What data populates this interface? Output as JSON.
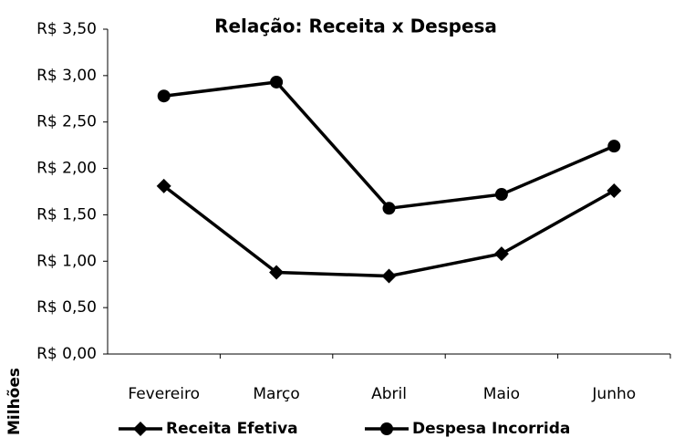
{
  "chart_data": {
    "type": "line",
    "title": "Relação: Receita x Despesa",
    "y_label": "Milhões",
    "categories": [
      "Fevereiro",
      "Março",
      "Abril",
      "Maio",
      "Junho"
    ],
    "series": [
      {
        "name": "Receita Efetiva",
        "color": "#000000",
        "marker": "diamond",
        "values": [
          1.81,
          0.88,
          0.84,
          1.08,
          1.76
        ]
      },
      {
        "name": "Despesa Incorrida",
        "color": "#000000",
        "marker": "circle",
        "values": [
          2.78,
          2.93,
          1.57,
          1.72,
          2.24
        ]
      }
    ],
    "ylim": [
      0,
      3.5
    ],
    "yticks": [
      {
        "value": 0,
        "label": "R$ 0,00"
      },
      {
        "value": 0.5,
        "label": "R$ 0,50"
      },
      {
        "value": 1,
        "label": "R$ 1,00"
      },
      {
        "value": 1.5,
        "label": "R$ 1,50"
      },
      {
        "value": 2,
        "label": "R$ 2,00"
      },
      {
        "value": 2.5,
        "label": "R$ 2,50"
      },
      {
        "value": 3,
        "label": "R$ 3,00"
      },
      {
        "value": 3.5,
        "label": "R$ 3,50"
      }
    ],
    "legend": "bottom",
    "grid": false
  }
}
